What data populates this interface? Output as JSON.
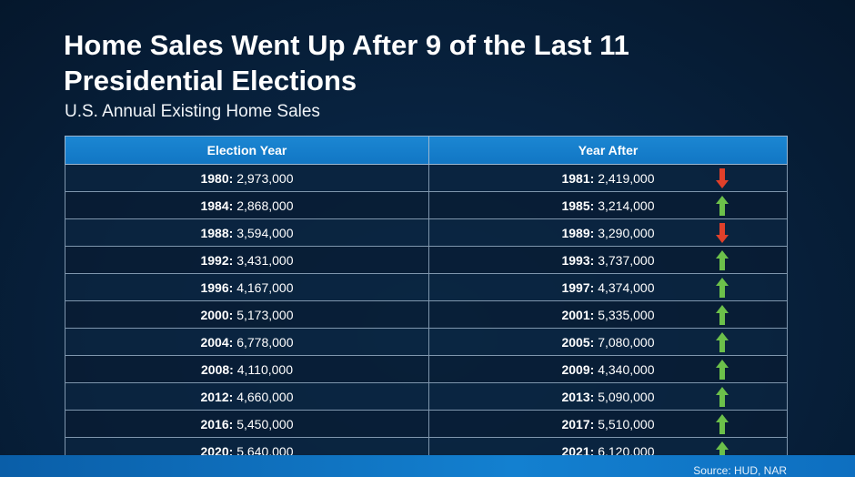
{
  "title": "Home Sales Went Up After 9 of the Last 11 Presidential Elections",
  "subtitle": "U.S. Annual Existing Home Sales",
  "source": "Source: HUD, NAR",
  "colors": {
    "up": "#6cc04a",
    "down": "#e0402a",
    "header": "#1b86d2"
  },
  "chart_data": {
    "type": "table",
    "columns": [
      "Election Year",
      "Year After"
    ],
    "rows": [
      {
        "election_year": "1980",
        "election_sales": "2,973,000",
        "after_year": "1981",
        "after_sales": "2,419,000",
        "direction": "down"
      },
      {
        "election_year": "1984",
        "election_sales": "2,868,000",
        "after_year": "1985",
        "after_sales": "3,214,000",
        "direction": "up"
      },
      {
        "election_year": "1988",
        "election_sales": "3,594,000",
        "after_year": "1989",
        "after_sales": "3,290,000",
        "direction": "down"
      },
      {
        "election_year": "1992",
        "election_sales": "3,431,000",
        "after_year": "1993",
        "after_sales": "3,737,000",
        "direction": "up"
      },
      {
        "election_year": "1996",
        "election_sales": "4,167,000",
        "after_year": "1997",
        "after_sales": "4,374,000",
        "direction": "up"
      },
      {
        "election_year": "2000",
        "election_sales": "5,173,000",
        "after_year": "2001",
        "after_sales": "5,335,000",
        "direction": "up"
      },
      {
        "election_year": "2004",
        "election_sales": "6,778,000",
        "after_year": "2005",
        "after_sales": "7,080,000",
        "direction": "up"
      },
      {
        "election_year": "2008",
        "election_sales": "4,110,000",
        "after_year": "2009",
        "after_sales": "4,340,000",
        "direction": "up"
      },
      {
        "election_year": "2012",
        "election_sales": "4,660,000",
        "after_year": "2013",
        "after_sales": "5,090,000",
        "direction": "up"
      },
      {
        "election_year": "2016",
        "election_sales": "5,450,000",
        "after_year": "2017",
        "after_sales": "5,510,000",
        "direction": "up"
      },
      {
        "election_year": "2020",
        "election_sales": "5,640,000",
        "after_year": "2021",
        "after_sales": "6,120,000",
        "direction": "up"
      }
    ]
  }
}
